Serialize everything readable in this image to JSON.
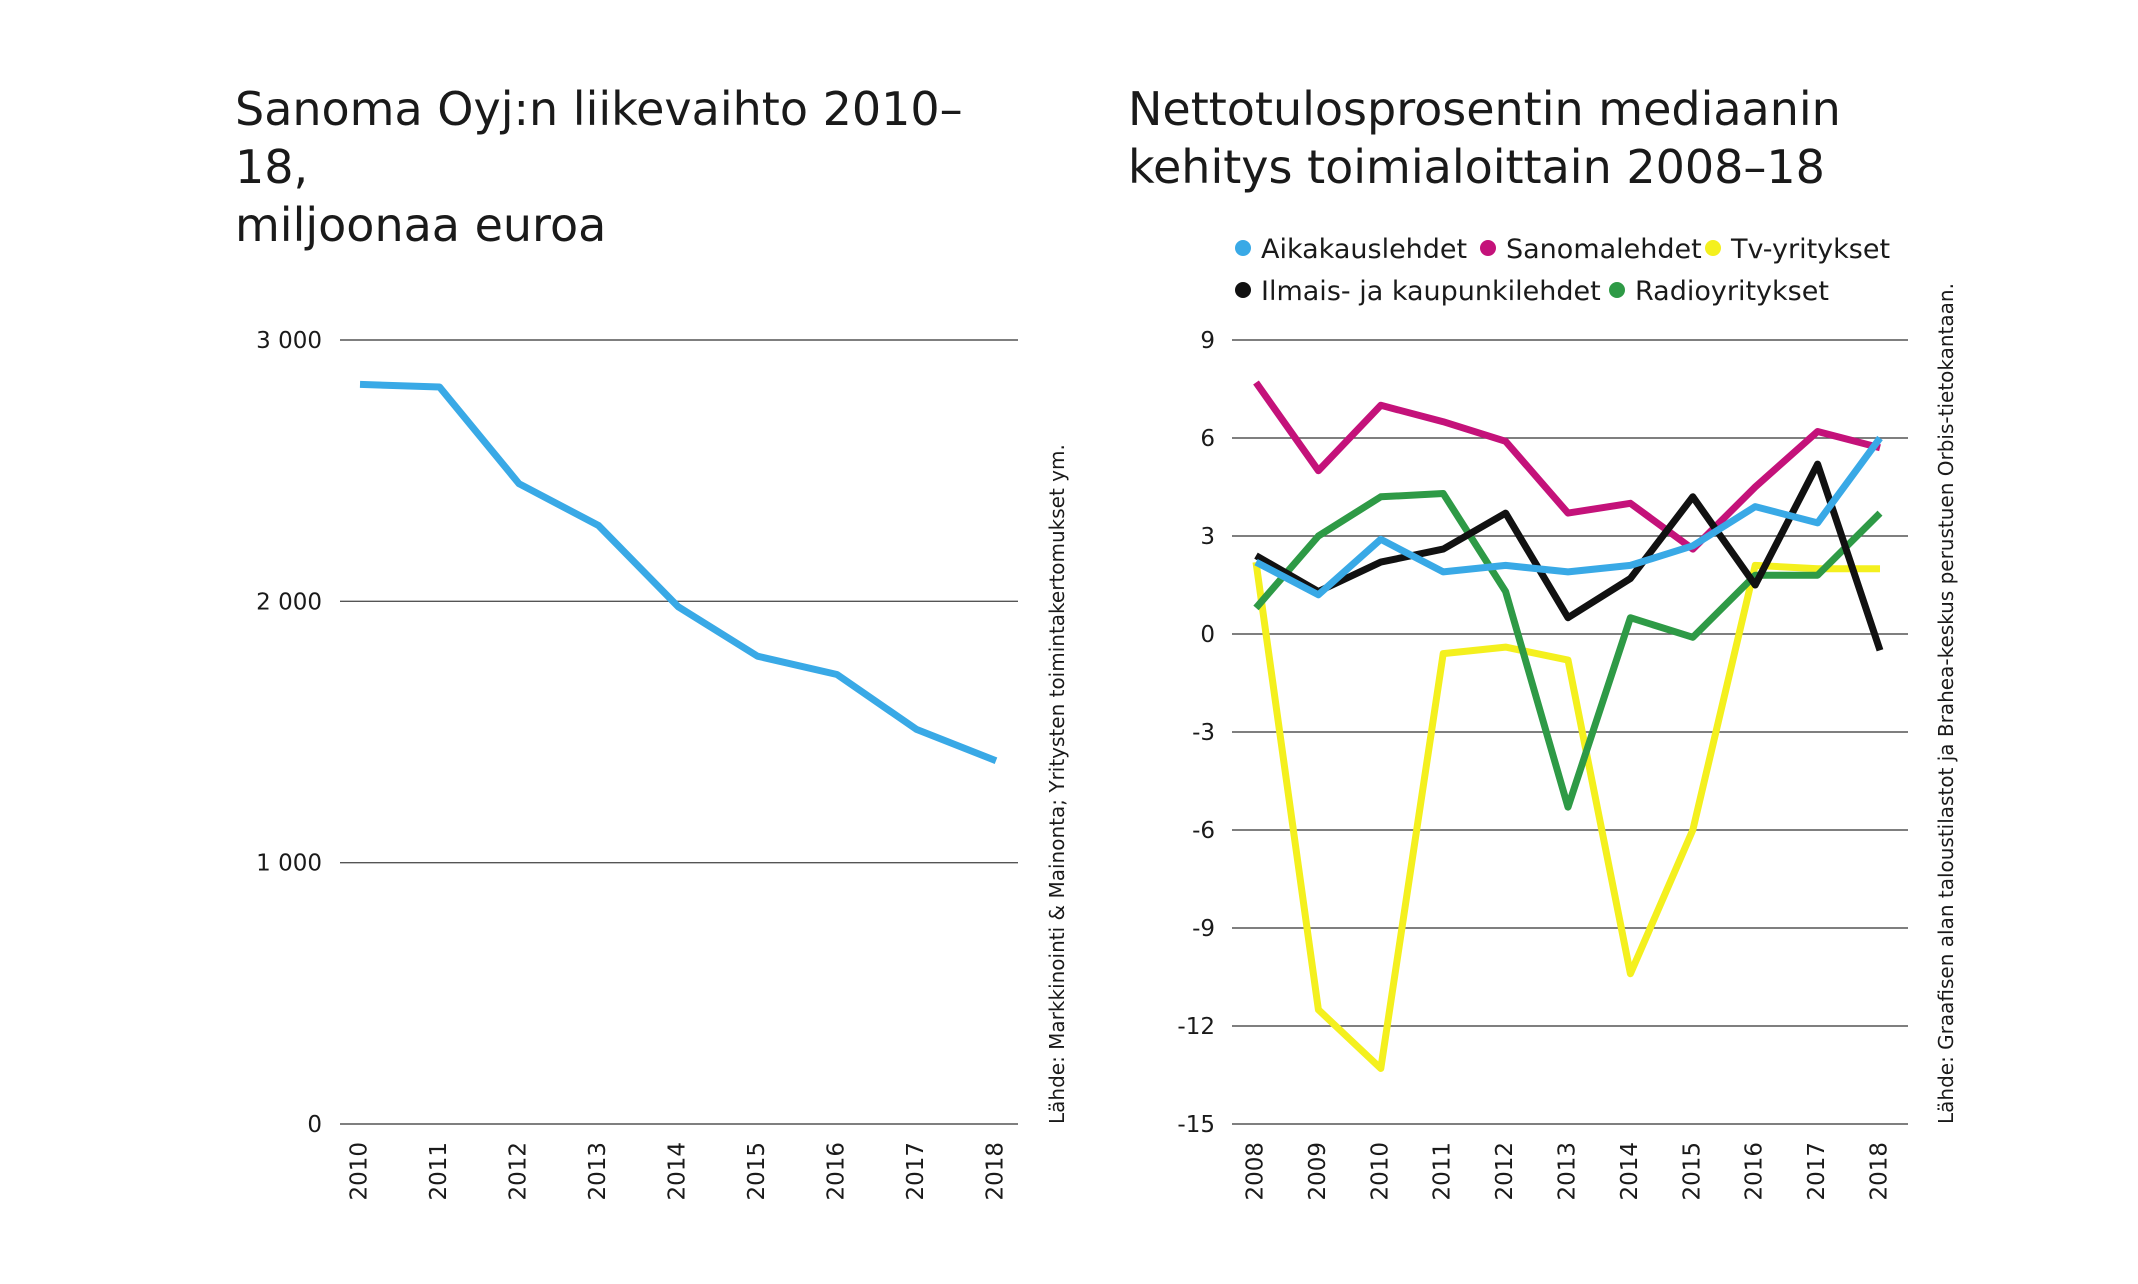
{
  "chart_data": [
    {
      "type": "line",
      "title": "Sanoma Oyj:n liikevaihto 2010–18,\nmiljoonaa euroa",
      "categories": [
        "2010",
        "2011",
        "2012",
        "2013",
        "2014",
        "2015",
        "2016",
        "2017",
        "2018"
      ],
      "series": [
        {
          "values": [
            2830,
            2820,
            2450,
            2290,
            1980,
            1790,
            1720,
            1510,
            1390
          ],
          "color": "#39a9e6"
        }
      ],
      "ylim": [
        0,
        3000
      ],
      "yticks": [
        0,
        1000,
        2000,
        3000
      ],
      "ytick_labels": [
        "0",
        "1 000",
        "2 000",
        "3 000"
      ],
      "grid": true,
      "source": "Lähde: Markkinointi & Mainonta; Yritysten toimintakertomukset ym."
    },
    {
      "type": "line",
      "title": "Nettotulosprosentin mediaanin\nkehitys toimialoittain 2008–18",
      "categories": [
        "2008",
        "2009",
        "2010",
        "2011",
        "2012",
        "2013",
        "2014",
        "2015",
        "2016",
        "2017",
        "2018"
      ],
      "series": [
        {
          "name": "Tv-yritykset",
          "color": "#f4f01e",
          "values": [
            2.2,
            -11.5,
            -13.3,
            -0.6,
            -0.4,
            -0.8,
            -10.4,
            -6.0,
            2.1,
            2.0,
            2.0
          ]
        },
        {
          "name": "Sanomalehdet",
          "color": "#c4127a",
          "values": [
            7.7,
            5.0,
            7.0,
            6.5,
            5.9,
            3.7,
            4.0,
            2.6,
            4.5,
            6.2,
            5.7
          ]
        },
        {
          "name": "Radioyritykset",
          "color": "#2e9a46",
          "values": [
            0.8,
            3.0,
            4.2,
            4.3,
            1.3,
            -5.3,
            0.5,
            -0.1,
            1.8,
            1.8,
            3.7
          ]
        },
        {
          "name": "Ilmais- ja kaupunkilehdet",
          "color": "#111111",
          "values": [
            2.4,
            1.3,
            2.2,
            2.6,
            3.7,
            0.5,
            1.7,
            4.2,
            1.5,
            5.2,
            -0.5
          ]
        },
        {
          "name": "Aikakauslehdet",
          "color": "#39a9e6",
          "values": [
            2.2,
            1.2,
            2.9,
            1.9,
            2.1,
            1.9,
            2.1,
            2.7,
            3.9,
            3.4,
            6.0
          ]
        }
      ],
      "legend": {
        "placement": "top",
        "order": [
          "Aikakauslehdet",
          "Sanomalehdet",
          "Tv-yritykset",
          "Ilmais- ja kaupunkilehdet",
          "Radioyritykset"
        ]
      },
      "ylim": [
        -15,
        9
      ],
      "yticks": [
        -15,
        -12,
        -9,
        -6,
        -3,
        0,
        3,
        6,
        9
      ],
      "grid": true,
      "source": "Lähde: Graafisen alan taloustilastot ja Brahea-keskus perustuen Orbis-tietokantaan."
    }
  ]
}
